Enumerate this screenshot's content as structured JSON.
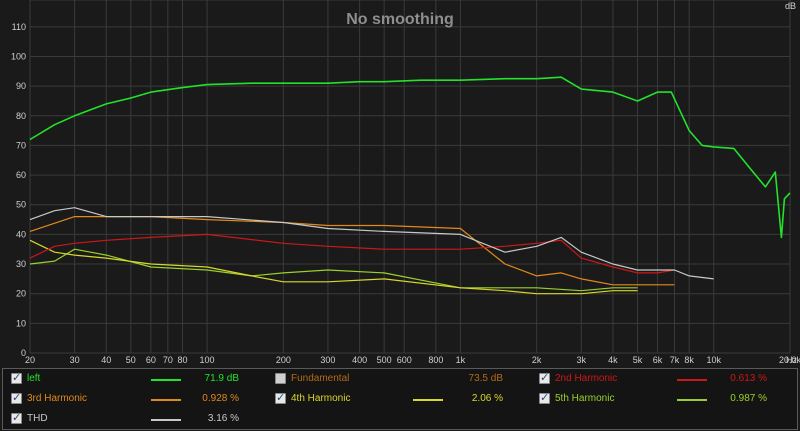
{
  "plot": {
    "title": "No smoothing",
    "y_unit": "dB",
    "x_unit": "Hz",
    "y_ticks": [
      "110",
      "100",
      "90",
      "80",
      "70",
      "60",
      "50",
      "40",
      "30",
      "20",
      "10",
      "0"
    ],
    "x_ticks": [
      "20",
      "30",
      "40",
      "50",
      "60",
      "70",
      "80",
      "100",
      "200",
      "300",
      "400",
      "500",
      "600",
      "800",
      "1k",
      "2k",
      "3k",
      "4k",
      "5k",
      "6k",
      "7k",
      "8k",
      "10k",
      "20.0k"
    ]
  },
  "chart_data": {
    "type": "line",
    "title": "No smoothing",
    "xlabel": "Hz",
    "ylabel": "dB",
    "xscale": "log",
    "xlim": [
      20,
      20000
    ],
    "ylim": [
      0,
      115
    ],
    "grid": true,
    "series": [
      {
        "name": "left",
        "color": "#22e22a",
        "x": [
          20,
          25,
          30,
          40,
          50,
          60,
          80,
          100,
          150,
          200,
          300,
          400,
          500,
          700,
          1000,
          1500,
          2000,
          2500,
          3000,
          4000,
          5000,
          6000,
          6800,
          8000,
          9000,
          10000,
          12000,
          14000,
          16000,
          17500,
          18500,
          19000,
          20000
        ],
        "y": [
          72,
          77,
          80,
          84,
          86,
          88,
          89.5,
          90.5,
          91,
          91,
          91,
          91.5,
          91.5,
          92,
          92,
          92.5,
          92.5,
          93,
          89,
          88,
          85,
          88,
          88,
          75,
          70,
          69.5,
          69,
          62,
          56,
          61,
          39,
          52,
          54
        ]
      },
      {
        "name": "THD",
        "color": "#c8c8c8",
        "x": [
          20,
          25,
          30,
          40,
          60,
          100,
          200,
          300,
          500,
          1000,
          1500,
          2000,
          2500,
          3000,
          4000,
          5000,
          6000,
          7000,
          8000,
          10000
        ],
        "y": [
          45,
          48,
          49,
          46,
          46,
          46,
          44,
          42,
          41,
          40,
          34,
          36,
          39,
          34,
          30,
          28,
          28,
          28,
          26,
          25
        ]
      },
      {
        "name": "2nd Harmonic",
        "color": "#cc1818",
        "x": [
          20,
          25,
          30,
          40,
          60,
          100,
          200,
          300,
          500,
          1000,
          1500,
          2000,
          2500,
          3000,
          4000,
          5000,
          6000,
          7000
        ],
        "y": [
          32,
          36,
          37,
          38,
          39,
          40,
          37,
          36,
          35,
          35,
          36,
          37,
          38,
          32,
          29,
          27,
          27,
          28
        ]
      },
      {
        "name": "3rd Harmonic",
        "color": "#e08a1a",
        "x": [
          20,
          30,
          40,
          60,
          100,
          200,
          300,
          500,
          1000,
          1500,
          2000,
          2500,
          3000,
          4000,
          5000,
          6000,
          7000
        ],
        "y": [
          41,
          46,
          46,
          46,
          45,
          44,
          43,
          43,
          42,
          30,
          26,
          27,
          25,
          23,
          23,
          23,
          23
        ]
      },
      {
        "name": "4th Harmonic",
        "color": "#d8d82a",
        "x": [
          20,
          25,
          30,
          40,
          60,
          100,
          150,
          200,
          300,
          500,
          1000,
          1500,
          2000,
          3000,
          4000,
          5000
        ],
        "y": [
          38,
          34,
          33,
          32,
          30,
          29,
          26,
          24,
          24,
          25,
          22,
          21,
          20,
          20,
          21,
          21
        ]
      },
      {
        "name": "5th Harmonic",
        "color": "#9ad02a",
        "x": [
          20,
          25,
          30,
          40,
          60,
          100,
          150,
          200,
          300,
          500,
          1000,
          1500,
          2000,
          3000,
          4000,
          5000
        ],
        "y": [
          30,
          31,
          35,
          33,
          29,
          28,
          26,
          27,
          28,
          27,
          22,
          22,
          22,
          21,
          22,
          22
        ]
      }
    ]
  },
  "legend": {
    "items": [
      {
        "label": "left",
        "value": "71.9 dB",
        "checked": true,
        "label_color": "#22e22a",
        "value_color": "#22e22a",
        "swatch": "#22e22a"
      },
      {
        "label": "Fundamental",
        "value": "73.5 dB",
        "checked": false,
        "label_color": "#b36a14",
        "value_color": "#b36a14",
        "swatch": ""
      },
      {
        "label": "2nd Harmonic",
        "value": "0.613 %",
        "checked": true,
        "label_color": "#cc1818",
        "value_color": "#cc1818",
        "swatch": "#cc1818"
      },
      {
        "label": "3rd Harmonic",
        "value": "0.928 %",
        "checked": true,
        "label_color": "#e08a1a",
        "value_color": "#e08a1a",
        "swatch": "#e08a1a"
      },
      {
        "label": "4th Harmonic",
        "value": "2.06 %",
        "checked": true,
        "label_color": "#d8d82a",
        "value_color": "#d8d82a",
        "swatch": "#d8d82a"
      },
      {
        "label": "5th Harmonic",
        "value": "0.987 %",
        "checked": true,
        "label_color": "#9ad02a",
        "value_color": "#9ad02a",
        "swatch": "#9ad02a"
      },
      {
        "label": "THD",
        "value": "3.16 %",
        "checked": true,
        "label_color": "#c8c8c8",
        "value_color": "#c8c8c8",
        "swatch": "#c8c8c8"
      }
    ]
  }
}
